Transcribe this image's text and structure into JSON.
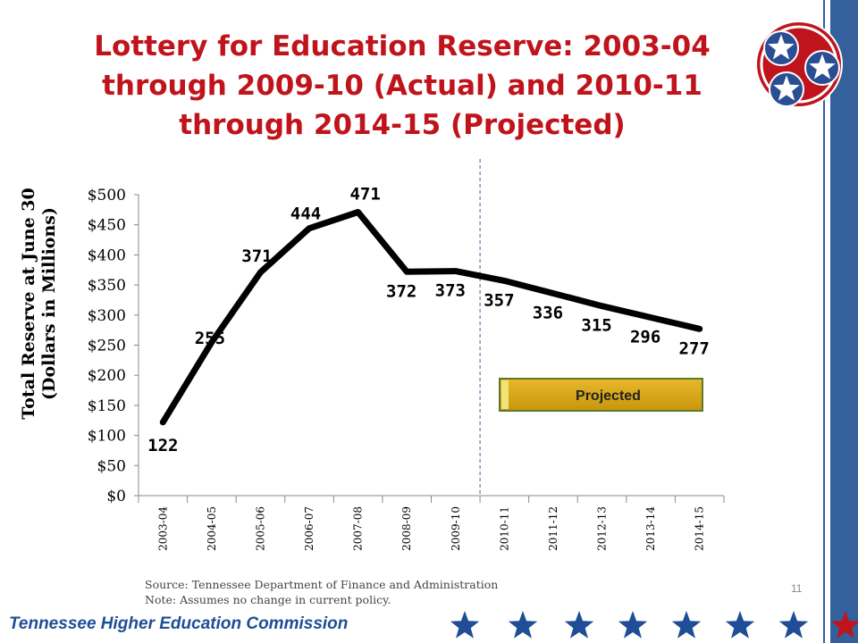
{
  "slide": {
    "title": "Lottery for Education Reserve: 2003-04 through 2009-10 (Actual) and 2010-11 through 2014-15 (Projected)",
    "source": "Source: Tennessee Department of Finance and Administration",
    "note": "Note: Assumes no change in current policy.",
    "footer": "Tennessee Higher Education Commission",
    "page_number": "11",
    "colors": {
      "title": "#c0141c",
      "sidebar": "#34609c",
      "footer_text": "#1f4e96",
      "star_blue": "#1f4e96",
      "star_red": "#c0141c"
    }
  },
  "chart_data": {
    "type": "line",
    "ylabel": "Total Reserve at June 30 (Dollars in Millions)",
    "xlabel": "",
    "categories": [
      "2003-04",
      "2004-05",
      "2005-06",
      "2006-07",
      "2007-08",
      "2008-09",
      "2009-10",
      "2010-11",
      "2011-12",
      "2012-13",
      "2013-14",
      "2014-15"
    ],
    "values": [
      122,
      255,
      371,
      444,
      471,
      372,
      373,
      357,
      336,
      315,
      296,
      277
    ],
    "data_labels": [
      "122",
      "255",
      "371",
      "444",
      "471",
      "372",
      "373",
      "357",
      "336",
      "315",
      "296",
      "277"
    ],
    "ylim": [
      0,
      500
    ],
    "yticks": [
      0,
      50,
      100,
      150,
      200,
      250,
      300,
      350,
      400,
      450,
      500
    ],
    "ytick_labels": [
      "$0",
      "$50",
      "$100",
      "$150",
      "$200",
      "$250",
      "$300",
      "$350",
      "$400",
      "$450",
      "$500"
    ],
    "grid": false,
    "line_color": "#000000",
    "projected_divider_after": "2009-10",
    "projected_label": "Projected",
    "projected_label_color": "#d4a017"
  }
}
